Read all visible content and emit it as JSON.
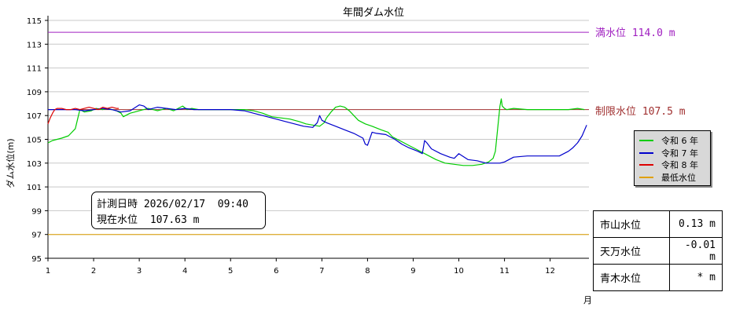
{
  "chart_data": {
    "type": "line",
    "title": "年間ダム水位",
    "ylabel": "ダム水位(m)",
    "xlabel": "月",
    "ylim": [
      95,
      115
    ],
    "xlim": [
      1,
      12.85
    ],
    "yticks": [
      "95",
      "97",
      "99",
      "101",
      "103",
      "105",
      "107",
      "109",
      "111",
      "113",
      "115"
    ],
    "xticks": [
      "1",
      "2",
      "3",
      "4",
      "5",
      "6",
      "7",
      "8",
      "9",
      "10",
      "11",
      "12"
    ],
    "grid": "horizontal",
    "legend_position": "right",
    "reference_lines": [
      {
        "name": "満水位",
        "label": "満水位 114.0 m",
        "value": 114.0,
        "color": "#a020c0"
      },
      {
        "name": "制限水位",
        "label": "制限水位 107.5 m",
        "value": 107.5,
        "color": "#a03030"
      },
      {
        "name": "最低水位",
        "value": 97.0,
        "color": "#e0a000"
      }
    ],
    "series": [
      {
        "name": "令和 6 年",
        "color": "#00cc00",
        "x": [
          1.0,
          1.1,
          1.2,
          1.3,
          1.45,
          1.6,
          1.65,
          1.7,
          1.8,
          1.95,
          2.05,
          2.2,
          2.3,
          2.4,
          2.5,
          2.6,
          2.65,
          2.8,
          2.9,
          3.0,
          3.1,
          3.2,
          3.3,
          3.4,
          3.5,
          3.6,
          3.75,
          3.85,
          3.95,
          4.05,
          4.15,
          4.3,
          4.5,
          4.8,
          5.0,
          5.3,
          5.5,
          5.7,
          5.9,
          6.1,
          6.3,
          6.5,
          6.65,
          6.8,
          6.95,
          7.05,
          7.1,
          7.2,
          7.3,
          7.4,
          7.5,
          7.6,
          7.7,
          7.8,
          7.95,
          8.1,
          8.3,
          8.45,
          8.55,
          8.75,
          8.9,
          9.05,
          9.25,
          9.5,
          9.7,
          9.9,
          10.1,
          10.3,
          10.5,
          10.65,
          10.75,
          10.8,
          10.9,
          10.93,
          10.95,
          11.0,
          11.05,
          11.2,
          11.5,
          11.8,
          12.1,
          12.4,
          12.6,
          12.75
        ],
        "y": [
          104.7,
          104.9,
          105.0,
          105.1,
          105.3,
          105.9,
          106.7,
          107.5,
          107.3,
          107.4,
          107.6,
          107.5,
          107.6,
          107.5,
          107.4,
          107.2,
          106.9,
          107.2,
          107.3,
          107.4,
          107.5,
          107.6,
          107.5,
          107.4,
          107.5,
          107.6,
          107.4,
          107.6,
          107.8,
          107.5,
          107.6,
          107.5,
          107.5,
          107.5,
          107.5,
          107.5,
          107.4,
          107.2,
          106.9,
          106.8,
          106.7,
          106.5,
          106.3,
          106.2,
          106.1,
          106.4,
          106.8,
          107.3,
          107.7,
          107.8,
          107.7,
          107.4,
          107.0,
          106.6,
          106.3,
          106.1,
          105.8,
          105.6,
          105.2,
          104.8,
          104.5,
          104.2,
          103.8,
          103.3,
          103.0,
          102.9,
          102.8,
          102.8,
          102.9,
          103.1,
          103.4,
          104.0,
          107.8,
          108.4,
          107.8,
          107.6,
          107.5,
          107.6,
          107.5,
          107.5,
          107.5,
          107.5,
          107.6,
          107.5
        ]
      },
      {
        "name": "令和 7 年",
        "color": "#0000cc",
        "x": [
          1.0,
          1.2,
          1.4,
          1.6,
          1.8,
          2.0,
          2.2,
          2.4,
          2.6,
          2.8,
          3.0,
          3.1,
          3.2,
          3.4,
          3.6,
          3.8,
          4.0,
          4.2,
          4.4,
          4.6,
          4.8,
          5.0,
          5.3,
          5.5,
          5.7,
          6.0,
          6.2,
          6.4,
          6.6,
          6.8,
          6.9,
          6.95,
          7.0,
          7.1,
          7.3,
          7.5,
          7.7,
          7.9,
          7.95,
          8.0,
          8.1,
          8.2,
          8.4,
          8.6,
          8.75,
          8.9,
          9.1,
          9.2,
          9.25,
          9.3,
          9.4,
          9.6,
          9.8,
          9.9,
          10.0,
          10.2,
          10.4,
          10.6,
          10.8,
          10.9,
          11.0,
          11.2,
          11.5,
          11.8,
          12.0,
          12.2,
          12.4,
          12.5,
          12.6,
          12.7,
          12.8
        ],
        "y": [
          107.5,
          107.5,
          107.5,
          107.5,
          107.4,
          107.5,
          107.6,
          107.5,
          107.3,
          107.4,
          107.9,
          107.8,
          107.5,
          107.7,
          107.6,
          107.5,
          107.6,
          107.5,
          107.5,
          107.5,
          107.5,
          107.5,
          107.4,
          107.2,
          107.0,
          106.7,
          106.5,
          106.3,
          106.1,
          106.0,
          106.4,
          107.0,
          106.6,
          106.4,
          106.1,
          105.8,
          105.5,
          105.1,
          104.6,
          104.5,
          105.6,
          105.5,
          105.4,
          105.0,
          104.6,
          104.3,
          104.0,
          103.8,
          104.9,
          104.7,
          104.2,
          103.8,
          103.5,
          103.4,
          103.8,
          103.3,
          103.2,
          103.0,
          103.0,
          103.0,
          103.1,
          103.5,
          103.6,
          103.6,
          103.6,
          103.6,
          104.0,
          104.3,
          104.7,
          105.3,
          106.2
        ]
      },
      {
        "name": "令和 8 年",
        "color": "#dd0000",
        "x": [
          1.0,
          1.05,
          1.1,
          1.15,
          1.2,
          1.3,
          1.4,
          1.5,
          1.6,
          1.7,
          1.8,
          1.9,
          2.0,
          2.1,
          2.2,
          2.3,
          2.4,
          2.5,
          2.55
        ],
        "y": [
          106.3,
          106.8,
          107.2,
          107.5,
          107.6,
          107.6,
          107.5,
          107.5,
          107.6,
          107.5,
          107.6,
          107.7,
          107.6,
          107.5,
          107.7,
          107.6,
          107.7,
          107.6,
          107.6
        ]
      },
      {
        "name": "最低水位",
        "color": "#e0a000",
        "x": [],
        "y": []
      }
    ]
  },
  "info_box": {
    "time_label": "計測日時",
    "time_value": "2026/02/17  09:40",
    "level_label": "現在水位",
    "level_value": "107.63 m"
  },
  "levels_table": [
    {
      "name": "市山水位",
      "value": "0.13 m"
    },
    {
      "name": "天万水位",
      "value": "-0.01 m"
    },
    {
      "name": "青木水位",
      "value": "* m"
    }
  ]
}
